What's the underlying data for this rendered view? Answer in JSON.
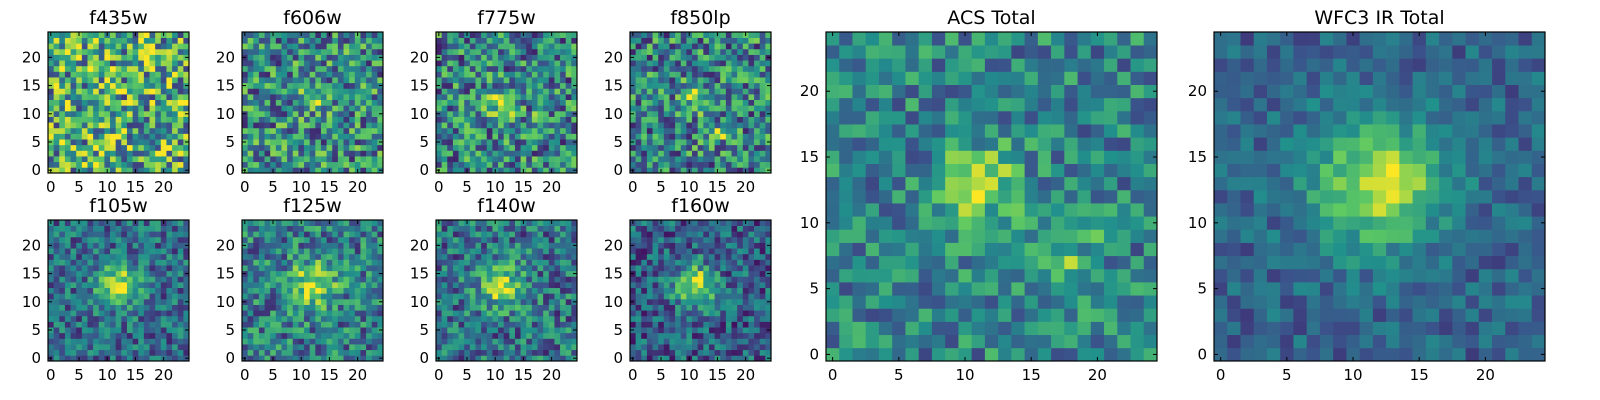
{
  "colormap": [
    "#440154",
    "#3b528b",
    "#21918c",
    "#5ec962",
    "#fde725"
  ],
  "panels": [
    {
      "id": "f435w",
      "title": "f435w",
      "xticks": [
        0,
        5,
        10,
        15,
        20
      ],
      "yticks": [
        0,
        5,
        10,
        15,
        20
      ],
      "hotspots": [],
      "noise": 0.55,
      "base": 0.62
    },
    {
      "id": "f606w",
      "title": "f606w",
      "xticks": [
        0,
        5,
        10,
        15,
        20
      ],
      "yticks": [
        0,
        5,
        10,
        15,
        20
      ],
      "hotspots": [
        {
          "x": 12,
          "y": 13,
          "amp": 0.35,
          "sigma": 1.8
        }
      ],
      "noise": 0.45,
      "base": 0.48
    },
    {
      "id": "f775w",
      "title": "f775w",
      "xticks": [
        0,
        5,
        10,
        15,
        20
      ],
      "yticks": [
        0,
        5,
        10,
        15,
        20
      ],
      "hotspots": [
        {
          "x": 11,
          "y": 12,
          "amp": 0.45,
          "sigma": 1.8
        },
        {
          "x": 18,
          "y": 9,
          "amp": 0.3,
          "sigma": 0.8
        }
      ],
      "noise": 0.45,
      "base": 0.45
    },
    {
      "id": "f850lp",
      "title": "f850lp",
      "xticks": [
        0,
        5,
        10,
        15,
        20
      ],
      "yticks": [
        0,
        5,
        10,
        15,
        20
      ],
      "hotspots": [
        {
          "x": 11,
          "y": 13,
          "amp": 0.35,
          "sigma": 1.8
        },
        {
          "x": 16,
          "y": 7,
          "amp": 0.45,
          "sigma": 1.0
        }
      ],
      "noise": 0.45,
      "base": 0.45
    },
    {
      "id": "f105w",
      "title": "f105w",
      "xticks": [
        0,
        5,
        10,
        15,
        20
      ],
      "yticks": [
        0,
        5,
        10,
        15,
        20
      ],
      "hotspots": [
        {
          "x": 12,
          "y": 13,
          "amp": 0.55,
          "sigma": 2.6
        }
      ],
      "noise": 0.3,
      "base": 0.35
    },
    {
      "id": "f125w",
      "title": "f125w",
      "xticks": [
        0,
        5,
        10,
        15,
        20
      ],
      "yticks": [
        0,
        5,
        10,
        15,
        20
      ],
      "hotspots": [
        {
          "x": 12,
          "y": 13,
          "amp": 0.5,
          "sigma": 2.8
        }
      ],
      "noise": 0.35,
      "base": 0.42
    },
    {
      "id": "f140w",
      "title": "f140w",
      "xticks": [
        0,
        5,
        10,
        15,
        20
      ],
      "yticks": [
        0,
        5,
        10,
        15,
        20
      ],
      "hotspots": [
        {
          "x": 11,
          "y": 13,
          "amp": 0.5,
          "sigma": 2.6
        }
      ],
      "noise": 0.35,
      "base": 0.38
    },
    {
      "id": "f160w",
      "title": "f160w",
      "xticks": [
        0,
        5,
        10,
        15,
        20
      ],
      "yticks": [
        0,
        5,
        10,
        15,
        20
      ],
      "hotspots": [
        {
          "x": 11,
          "y": 13,
          "amp": 0.6,
          "sigma": 2.6
        }
      ],
      "noise": 0.32,
      "base": 0.3
    },
    {
      "id": "acs-total",
      "title": "ACS Total",
      "xticks": [
        0,
        5,
        10,
        15,
        20
      ],
      "yticks": [
        0,
        5,
        10,
        15,
        20
      ],
      "hotspots": [
        {
          "x": 11,
          "y": 13,
          "amp": 0.45,
          "sigma": 2.0
        },
        {
          "x": 17,
          "y": 7,
          "amp": 0.4,
          "sigma": 1.0
        },
        {
          "x": 19,
          "y": 9,
          "amp": 0.3,
          "sigma": 0.7
        }
      ],
      "noise": 0.3,
      "base": 0.45
    },
    {
      "id": "wfc3-ir-total",
      "title": "WFC3 IR Total",
      "xticks": [
        0,
        5,
        10,
        15,
        20
      ],
      "yticks": [
        0,
        5,
        10,
        15,
        20
      ],
      "hotspots": [
        {
          "x": 12,
          "y": 13,
          "amp": 0.6,
          "sigma": 3.4
        }
      ],
      "noise": 0.18,
      "base": 0.32
    }
  ],
  "chart_data": {
    "type": "heatmap",
    "grid_size": [
      25,
      25
    ],
    "colormap_name": "viridis",
    "panels": [
      {
        "title": "f435w",
        "xlim": [
          0,
          24
        ],
        "ylim": [
          0,
          24
        ],
        "xticks": [
          0,
          5,
          10,
          15,
          20
        ],
        "yticks": [
          0,
          5,
          10,
          15,
          20
        ],
        "peak": null
      },
      {
        "title": "f606w",
        "xlim": [
          0,
          24
        ],
        "ylim": [
          0,
          24
        ],
        "xticks": [
          0,
          5,
          10,
          15,
          20
        ],
        "yticks": [
          0,
          5,
          10,
          15,
          20
        ],
        "peak": [
          12,
          13
        ]
      },
      {
        "title": "f775w",
        "xlim": [
          0,
          24
        ],
        "ylim": [
          0,
          24
        ],
        "xticks": [
          0,
          5,
          10,
          15,
          20
        ],
        "yticks": [
          0,
          5,
          10,
          15,
          20
        ],
        "peak": [
          11,
          12
        ]
      },
      {
        "title": "f850lp",
        "xlim": [
          0,
          24
        ],
        "ylim": [
          0,
          24
        ],
        "xticks": [
          0,
          5,
          10,
          15,
          20
        ],
        "yticks": [
          0,
          5,
          10,
          15,
          20
        ],
        "peak": [
          16,
          7
        ]
      },
      {
        "title": "f105w",
        "xlim": [
          0,
          24
        ],
        "ylim": [
          0,
          24
        ],
        "xticks": [
          0,
          5,
          10,
          15,
          20
        ],
        "yticks": [
          0,
          5,
          10,
          15,
          20
        ],
        "peak": [
          12,
          13
        ]
      },
      {
        "title": "f125w",
        "xlim": [
          0,
          24
        ],
        "ylim": [
          0,
          24
        ],
        "xticks": [
          0,
          5,
          10,
          15,
          20
        ],
        "yticks": [
          0,
          5,
          10,
          15,
          20
        ],
        "peak": [
          12,
          13
        ]
      },
      {
        "title": "f140w",
        "xlim": [
          0,
          24
        ],
        "ylim": [
          0,
          24
        ],
        "xticks": [
          0,
          5,
          10,
          15,
          20
        ],
        "yticks": [
          0,
          5,
          10,
          15,
          20
        ],
        "peak": [
          11,
          13
        ]
      },
      {
        "title": "f160w",
        "xlim": [
          0,
          24
        ],
        "ylim": [
          0,
          24
        ],
        "xticks": [
          0,
          5,
          10,
          15,
          20
        ],
        "yticks": [
          0,
          5,
          10,
          15,
          20
        ],
        "peak": [
          11,
          13
        ]
      },
      {
        "title": "ACS Total",
        "xlim": [
          0,
          24
        ],
        "ylim": [
          0,
          24
        ],
        "xticks": [
          0,
          5,
          10,
          15,
          20
        ],
        "yticks": [
          0,
          5,
          10,
          15,
          20
        ],
        "peak": [
          11,
          13
        ]
      },
      {
        "title": "WFC3 IR Total",
        "xlim": [
          0,
          24
        ],
        "ylim": [
          0,
          24
        ],
        "xticks": [
          0,
          5,
          10,
          15,
          20
        ],
        "yticks": [
          0,
          5,
          10,
          15,
          20
        ],
        "peak": [
          12,
          13
        ]
      }
    ]
  }
}
